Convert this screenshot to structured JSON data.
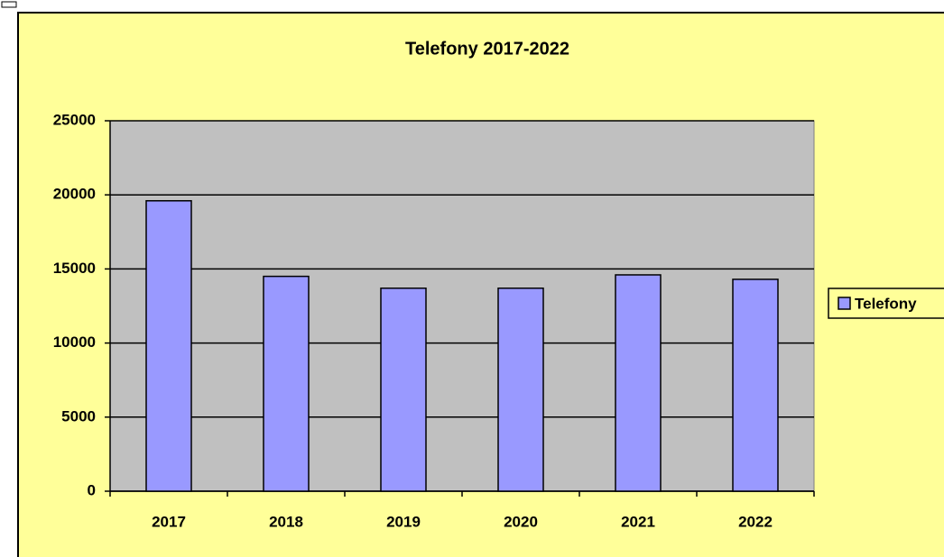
{
  "chart_data": {
    "type": "bar",
    "title": "Telefony 2017-2022",
    "categories": [
      "2017",
      "2018",
      "2019",
      "2020",
      "2021",
      "2022"
    ],
    "series": [
      {
        "name": "Telefony",
        "color": "#9999ff",
        "values": [
          19600,
          14500,
          13700,
          13700,
          14600,
          14300
        ]
      }
    ],
    "ylim": [
      0,
      25000
    ],
    "yticks": [
      0,
      5000,
      10000,
      15000,
      20000,
      25000
    ],
    "grid": true,
    "legend": "right",
    "plot_color": "#c0c0c0",
    "background": "#ffff99"
  }
}
